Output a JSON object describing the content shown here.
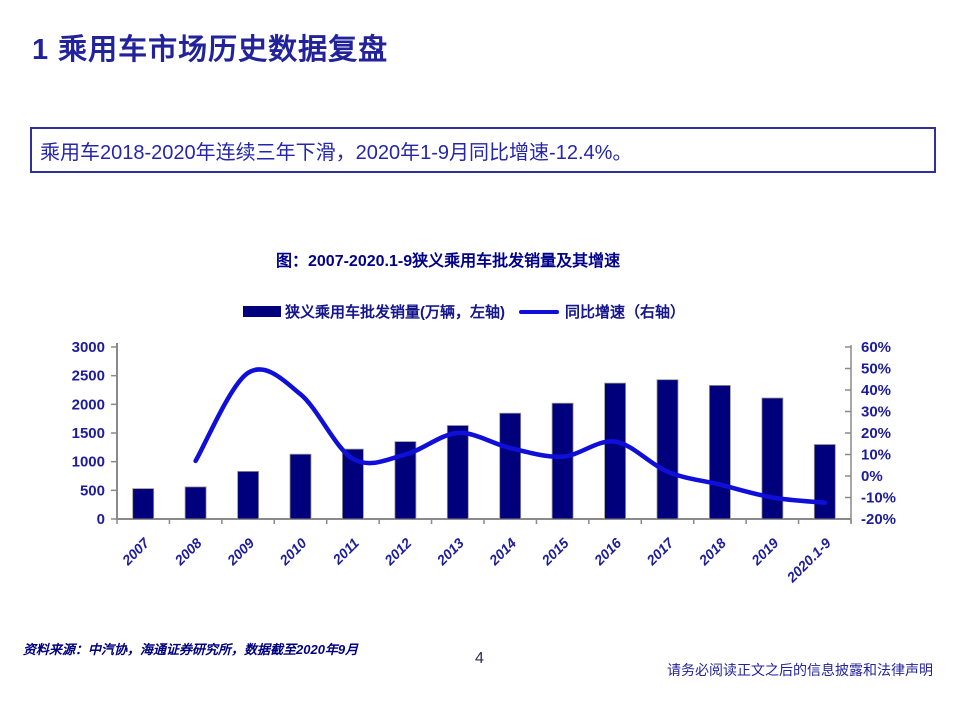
{
  "page": {
    "title": "1 乘用车市场历史数据复盘",
    "highlight_text": "乘用车2018-2020年连续三年下滑，2020年1-9月同比增速-12.4%。",
    "source_note": "资料来源：中汽协，海通证券研究所，数据截至2020年9月",
    "page_number": "4",
    "disclaimer": "请务必阅读正文之后的信息披露和法律声明"
  },
  "chart": {
    "title": "图：2007-2020.1-9狭义乘用车批发销量及其增速",
    "legend": [
      {
        "type": "bar",
        "label": "狭义乘用车批发销量(万辆，左轴)",
        "color": "#00007D"
      },
      {
        "type": "line",
        "label": "同比增速（右轴）",
        "color": "#0F0FD9"
      }
    ]
  },
  "chart_data": {
    "type": "bar",
    "subtype": "bar+line combo, dual axis",
    "title": "图：2007-2020.1-9狭义乘用车批发销量及其增速",
    "categories": [
      "2007",
      "2008",
      "2009",
      "2010",
      "2011",
      "2012",
      "2013",
      "2014",
      "2015",
      "2016",
      "2017",
      "2018",
      "2019",
      "2020.1-9"
    ],
    "series": [
      {
        "name": "狭义乘用车批发销量(万辆，左轴)",
        "type": "bar",
        "axis": "left",
        "color": "#00007D",
        "values": [
          530,
          560,
          830,
          1130,
          1220,
          1350,
          1630,
          1845,
          2020,
          2370,
          2430,
          2330,
          2110,
          1300
        ]
      },
      {
        "name": "同比增速（右轴）",
        "type": "line",
        "axis": "right",
        "color": "#0F0FD9",
        "values": [
          null,
          7,
          48,
          38,
          8,
          10,
          20,
          13,
          9,
          16,
          2,
          -4,
          -10,
          -12.4
        ]
      }
    ],
    "left_axis": {
      "min": 0,
      "max": 3000,
      "tick_values": [
        0,
        500,
        1000,
        1500,
        2000,
        2500,
        3000
      ],
      "tick_labels": [
        "0",
        "500",
        "1000",
        "1500",
        "2000",
        "2500",
        "3000"
      ]
    },
    "right_axis": {
      "min": -20,
      "max": 60,
      "tick_values": [
        -20,
        -10,
        0,
        10,
        20,
        30,
        40,
        50,
        60
      ],
      "tick_labels": [
        "-20%",
        "-10%",
        "0%",
        "10%",
        "20%",
        "30%",
        "40%",
        "50%",
        "60%"
      ]
    },
    "grid": false,
    "legend_position": "top",
    "line_smoothed": true
  },
  "colors": {
    "title_text": "#22229B",
    "body_text": "#2626A8",
    "chart_text": "#1C1C9C",
    "axis_line": "#8A8A8A",
    "bar_fill": "#00007D",
    "line_stroke": "#0F0FD9",
    "box_border": "#30309A"
  }
}
